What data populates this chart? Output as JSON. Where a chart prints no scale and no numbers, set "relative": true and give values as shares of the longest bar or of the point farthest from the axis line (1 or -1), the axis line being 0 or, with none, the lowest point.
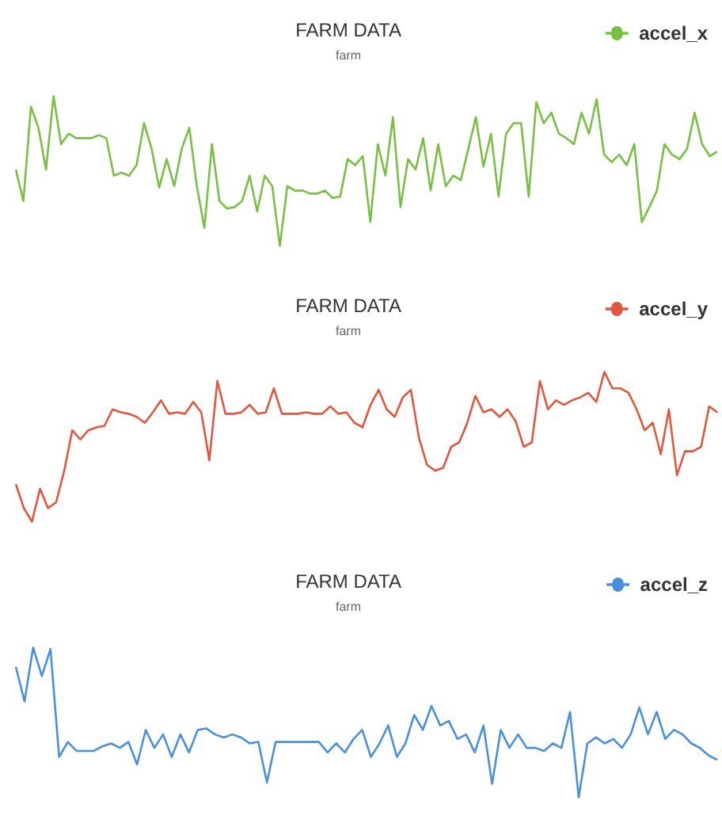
{
  "chart_data": [
    {
      "type": "line",
      "title": "FARM DATA",
      "subtitle": "farm",
      "relative": true,
      "legend": "top right",
      "marker": "none",
      "line_style": "solid",
      "categories": [
        null,
        null,
        null,
        null,
        null,
        null,
        null,
        null,
        null,
        null,
        null,
        null,
        null,
        null,
        null,
        null,
        null,
        null,
        null,
        null,
        null,
        null,
        null,
        null,
        null,
        null,
        null,
        null,
        null,
        null,
        null,
        null,
        null,
        null,
        null,
        null,
        null,
        null,
        null,
        null,
        null,
        null,
        null,
        null,
        null,
        null,
        null,
        null,
        null,
        null,
        null,
        null,
        null,
        null,
        null,
        null,
        null,
        null,
        null,
        null,
        null,
        null,
        null,
        null,
        null,
        null,
        null,
        null,
        null,
        null,
        null,
        null,
        null,
        null,
        null,
        null,
        null,
        null,
        null,
        null,
        null,
        null,
        null,
        null,
        null,
        null,
        null,
        null,
        null,
        null,
        null,
        null,
        null,
        null
      ],
      "series": [
        {
          "name": "accel_x",
          "color": "#77c043",
          "values": [
            0.51,
            0.3,
            0.93,
            0.79,
            0.51,
            1.0,
            0.68,
            0.75,
            0.72,
            0.72,
            0.72,
            0.74,
            0.72,
            0.47,
            0.49,
            0.47,
            0.54,
            0.82,
            0.65,
            0.39,
            0.58,
            0.4,
            0.65,
            0.79,
            0.4,
            0.12,
            0.68,
            0.3,
            0.25,
            0.26,
            0.3,
            0.47,
            0.23,
            0.47,
            0.4,
            0,
            0.4,
            0.37,
            0.37,
            0.35,
            0.35,
            0.37,
            0.32,
            0.33,
            0.58,
            0.54,
            0.6,
            0.16,
            0.68,
            0.47,
            0.86,
            0.26,
            0.58,
            0.51,
            0.72,
            0.37,
            0.68,
            0.4,
            0.47,
            0.44,
            0.65,
            0.86,
            0.53,
            0.75,
            0.33,
            0.75,
            0.82,
            0.82,
            0.33,
            0.96,
            0.82,
            0.89,
            0.75,
            0.72,
            0.68,
            0.89,
            0.75,
            0.98,
            0.61,
            0.56,
            0.61,
            0.54,
            0.68,
            0.16,
            0.26,
            0.37,
            0.68,
            0.61,
            0.58,
            0.65,
            0.89,
            0.68,
            0.6,
            0.63
          ]
        }
      ]
    },
    {
      "type": "line",
      "title": "FARM DATA",
      "subtitle": "farm",
      "relative": true,
      "legend": "top right",
      "marker": "none",
      "line_style": "solid",
      "categories": [
        null,
        null,
        null,
        null,
        null,
        null,
        null,
        null,
        null,
        null,
        null,
        null,
        null,
        null,
        null,
        null,
        null,
        null,
        null,
        null,
        null,
        null,
        null,
        null,
        null,
        null,
        null,
        null,
        null,
        null,
        null,
        null,
        null,
        null,
        null,
        null,
        null,
        null,
        null,
        null,
        null,
        null,
        null,
        null,
        null,
        null,
        null,
        null,
        null,
        null,
        null,
        null,
        null,
        null,
        null,
        null,
        null,
        null,
        null,
        null,
        null,
        null,
        null,
        null,
        null,
        null,
        null,
        null,
        null,
        null,
        null,
        null,
        null,
        null,
        null,
        null,
        null,
        null,
        null,
        null,
        null,
        null,
        null,
        null,
        null,
        null,
        null,
        null
      ],
      "series": [
        {
          "name": "accel_y",
          "color": "#e0563f",
          "values": [
            0.25,
            0.09,
            0,
            0.22,
            0.09,
            0.13,
            0.34,
            0.61,
            0.55,
            0.61,
            0.63,
            0.64,
            0.75,
            0.73,
            0.72,
            0.7,
            0.66,
            0.73,
            0.81,
            0.72,
            0.73,
            0.72,
            0.8,
            0.73,
            0.41,
            0.94,
            0.72,
            0.72,
            0.73,
            0.78,
            0.72,
            0.73,
            0.89,
            0.72,
            0.72,
            0.72,
            0.73,
            0.72,
            0.72,
            0.77,
            0.72,
            0.73,
            0.66,
            0.63,
            0.78,
            0.88,
            0.75,
            0.7,
            0.83,
            0.88,
            0.56,
            0.38,
            0.34,
            0.36,
            0.5,
            0.53,
            0.66,
            0.84,
            0.73,
            0.75,
            0.7,
            0.75,
            0.67,
            0.5,
            0.53,
            0.94,
            0.75,
            0.81,
            0.78,
            0.81,
            0.83,
            0.86,
            0.8,
            1.0,
            0.89,
            0.89,
            0.86,
            0.75,
            0.61,
            0.66,
            0.45,
            0.75,
            0.31,
            0.47,
            0.47,
            0.5,
            0.77,
            0.73
          ]
        }
      ]
    },
    {
      "type": "line",
      "title": "FARM DATA",
      "subtitle": "farm",
      "relative": true,
      "legend": "top right",
      "marker": "none",
      "line_style": "solid",
      "categories": [
        null,
        null,
        null,
        null,
        null,
        null,
        null,
        null,
        null,
        null,
        null,
        null,
        null,
        null,
        null,
        null,
        null,
        null,
        null,
        null,
        null,
        null,
        null,
        null,
        null,
        null,
        null,
        null,
        null,
        null,
        null,
        null,
        null,
        null,
        null,
        null,
        null,
        null,
        null,
        null,
        null,
        null,
        null,
        null,
        null,
        null,
        null,
        null,
        null,
        null,
        null,
        null,
        null,
        null,
        null,
        null,
        null,
        null,
        null,
        null,
        null,
        null,
        null,
        null,
        null,
        null,
        null,
        null,
        null,
        null,
        null,
        null,
        null,
        null,
        null,
        null,
        null,
        null,
        null,
        null,
        null,
        null
      ],
      "series": [
        {
          "name": "accel_z",
          "color": "#4a8fdc",
          "values": [
            0.87,
            0.64,
            1.0,
            0.81,
            0.99,
            0.27,
            0.37,
            0.31,
            0.31,
            0.31,
            0.34,
            0.36,
            0.33,
            0.37,
            0.22,
            0.45,
            0.33,
            0.42,
            0.27,
            0.42,
            0.3,
            0.45,
            0.46,
            0.42,
            0.4,
            0.42,
            0.4,
            0.36,
            0.37,
            0.1,
            0.37,
            0.37,
            0.37,
            0.37,
            0.37,
            0.37,
            0.3,
            0.36,
            0.3,
            0.39,
            0.45,
            0.27,
            0.36,
            0.48,
            0.27,
            0.36,
            0.55,
            0.45,
            0.61,
            0.48,
            0.51,
            0.39,
            0.42,
            0.3,
            0.48,
            0.09,
            0.45,
            0.33,
            0.42,
            0.33,
            0.33,
            0.31,
            0.36,
            0.33,
            0.57,
            0,
            0.36,
            0.4,
            0.36,
            0.39,
            0.33,
            0.42,
            0.6,
            0.42,
            0.57,
            0.39,
            0.45,
            0.42,
            0.36,
            0.33,
            0.28,
            0.25
          ]
        }
      ]
    }
  ]
}
